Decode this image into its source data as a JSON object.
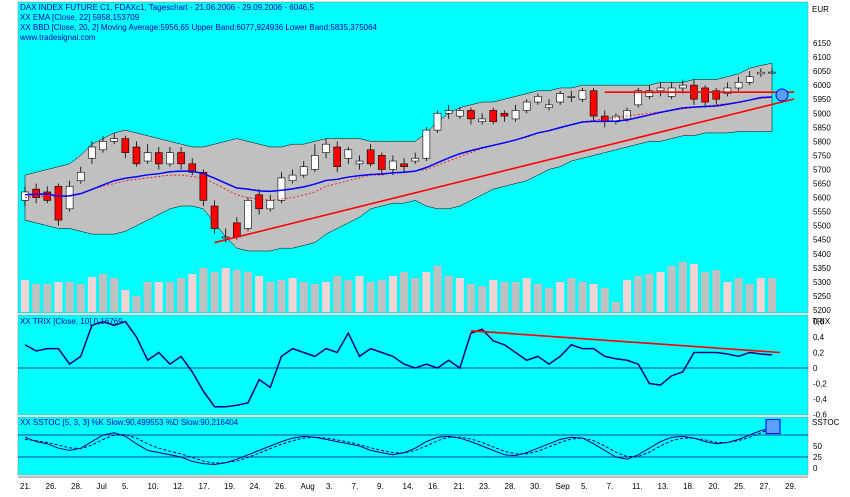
{
  "colors": {
    "background": "#00ffff",
    "band": "#c0c0c0",
    "up": "#ffffff",
    "down": "#ff0000",
    "ema": "#0000ff",
    "trend": "#ff0000",
    "indicator": "#000080",
    "volume": "#c0c0c0"
  },
  "header": {
    "title": "DAX INDEX FUTURE C1, FDAXc1, Tageschart - 21.06.2006 - 29.09.2006 - 6046,5",
    "ema": "XX EMA [Close, 22] 5958,153709",
    "bb": "XX BBD [Close, 20, 2] Moving Average:5956,65 Upper Band:6077,924936 Lower Band:5835,375064",
    "site": "www.tradesignal.com"
  },
  "price_axis": {
    "label": "EUR",
    "ticks": [
      "6150",
      "6100",
      "6050",
      "6000",
      "5950",
      "5900",
      "5850",
      "5800",
      "5750",
      "5700",
      "5650",
      "5600",
      "5550",
      "5500",
      "5450",
      "5400",
      "5350",
      "5300",
      "5250",
      "5200"
    ]
  },
  "trix": {
    "title": "XX TRIX [Close, 10] 0,16769",
    "axis_label": "TRIX",
    "ticks": [
      "0,6",
      "0,4",
      "0,2",
      "0",
      "-0,2",
      "-0,4",
      "-0,6"
    ]
  },
  "sstoc": {
    "title": "XX SSTOC [5, 3, 3] %K Slow:90,499553 %D Slow:90,216404",
    "axis_label": "SSTOC",
    "ticks": [
      "50",
      "25",
      "0"
    ]
  },
  "date_axis": {
    "labels": [
      "21.",
      "26.",
      "28.",
      "Jul",
      "5.",
      "10.",
      "12.",
      "17.",
      "19.",
      "24.",
      "26.",
      "Aug",
      "3.",
      "7.",
      "9.",
      "14.",
      "16.",
      "21.",
      "23.",
      "28.",
      "30.",
      "Sep",
      "5.",
      "7.",
      "11.",
      "13.",
      "18.",
      "20.",
      "25.",
      "27.",
      "29."
    ]
  },
  "chart_data": [
    {
      "type": "candlestick",
      "title": "DAX INDEX FUTURE C1, FDAXc1, Tageschart - 21.06.2006 - 29.09.2006 - 6046,5",
      "ylabel": "EUR",
      "ylim": [
        5200,
        6150
      ],
      "open": [
        5590,
        5630,
        5620,
        5640,
        5560,
        5660,
        5740,
        5770,
        5800,
        5810,
        5780,
        5730,
        5760,
        5720,
        5760,
        5720,
        5690,
        5570,
        5460,
        5510,
        5490,
        5610,
        5560,
        5590,
        5660,
        5680,
        5700,
        5760,
        5780,
        5740,
        5720,
        5770,
        5750,
        5700,
        5720,
        5730,
        5740,
        5840,
        5900,
        5890,
        5910,
        5870,
        5910,
        5900,
        5880,
        5910,
        5940,
        5920,
        5940,
        5960,
        5950,
        5980,
        5890,
        5870,
        5880,
        5930,
        5960,
        5980,
        5960,
        5990,
        6000,
        5990,
        5980,
        5970,
        5990,
        6010,
        6040,
        6046
      ],
      "close": [
        5620,
        5600,
        5590,
        5520,
        5640,
        5690,
        5780,
        5800,
        5810,
        5760,
        5720,
        5760,
        5720,
        5760,
        5720,
        5690,
        5590,
        5490,
        5460,
        5460,
        5590,
        5560,
        5590,
        5670,
        5680,
        5710,
        5750,
        5790,
        5710,
        5770,
        5730,
        5720,
        5700,
        5730,
        5710,
        5740,
        5840,
        5900,
        5910,
        5910,
        5880,
        5880,
        5870,
        5890,
        5910,
        5940,
        5960,
        5930,
        5970,
        5960,
        5980,
        5890,
        5870,
        5890,
        5910,
        5980,
        5980,
        5990,
        5990,
        6000,
        5950,
        5940,
        5950,
        5990,
        6010,
        6030,
        6046,
        6046.5
      ],
      "high": [
        5640,
        5650,
        5640,
        5650,
        5660,
        5710,
        5800,
        5820,
        5830,
        5820,
        5800,
        5790,
        5780,
        5780,
        5780,
        5740,
        5700,
        5590,
        5490,
        5530,
        5600,
        5630,
        5610,
        5690,
        5700,
        5730,
        5790,
        5810,
        5800,
        5780,
        5750,
        5790,
        5760,
        5750,
        5740,
        5760,
        5850,
        5910,
        5930,
        5920,
        5920,
        5900,
        5920,
        5910,
        5930,
        5950,
        5970,
        5950,
        5980,
        5980,
        5990,
        5990,
        5910,
        5900,
        5920,
        5990,
        6000,
        6010,
        6010,
        6020,
        6020,
        6000,
        5990,
        6010,
        6030,
        6050,
        6060,
        6060
      ],
      "low": [
        5570,
        5580,
        5580,
        5500,
        5550,
        5650,
        5720,
        5760,
        5790,
        5740,
        5710,
        5720,
        5700,
        5710,
        5700,
        5680,
        5570,
        5470,
        5440,
        5450,
        5480,
        5540,
        5550,
        5580,
        5650,
        5670,
        5690,
        5740,
        5690,
        5720,
        5700,
        5710,
        5680,
        5680,
        5690,
        5720,
        5730,
        5830,
        5880,
        5880,
        5860,
        5860,
        5860,
        5870,
        5870,
        5900,
        5930,
        5910,
        5930,
        5940,
        5940,
        5870,
        5850,
        5860,
        5870,
        5920,
        5950,
        5960,
        5950,
        5970,
        5930,
        5920,
        5930,
        5960,
        5980,
        6000,
        6030,
        6040
      ],
      "ema22": [
        5610,
        5612,
        5613,
        5605,
        5606,
        5614,
        5629,
        5645,
        5660,
        5669,
        5674,
        5681,
        5685,
        5692,
        5694,
        5694,
        5685,
        5669,
        5651,
        5634,
        5630,
        5624,
        5622,
        5626,
        5631,
        5638,
        5648,
        5661,
        5665,
        5673,
        5678,
        5682,
        5684,
        5688,
        5690,
        5694,
        5707,
        5724,
        5741,
        5756,
        5767,
        5777,
        5786,
        5795,
        5805,
        5817,
        5830,
        5838,
        5849,
        5859,
        5869,
        5871,
        5871,
        5872,
        5876,
        5885,
        5894,
        5903,
        5911,
        5919,
        5922,
        5924,
        5926,
        5932,
        5939,
        5947,
        5956,
        5958
      ],
      "bb_upper": [
        5680,
        5690,
        5700,
        5710,
        5720,
        5750,
        5790,
        5810,
        5830,
        5840,
        5830,
        5820,
        5810,
        5800,
        5790,
        5780,
        5780,
        5790,
        5800,
        5810,
        5800,
        5790,
        5780,
        5780,
        5790,
        5790,
        5800,
        5810,
        5810,
        5810,
        5810,
        5800,
        5800,
        5800,
        5800,
        5800,
        5830,
        5870,
        5900,
        5920,
        5930,
        5940,
        5940,
        5950,
        5960,
        5970,
        5980,
        5980,
        5990,
        5990,
        6000,
        6000,
        6000,
        6000,
        6000,
        6000,
        6000,
        6010,
        6010,
        6010,
        6020,
        6020,
        6020,
        6030,
        6040,
        6060,
        6070,
        6078
      ],
      "bb_middle": [
        5600,
        5605,
        5605,
        5600,
        5605,
        5615,
        5630,
        5640,
        5650,
        5660,
        5665,
        5670,
        5675,
        5680,
        5680,
        5675,
        5670,
        5650,
        5630,
        5610,
        5600,
        5595,
        5590,
        5595,
        5600,
        5610,
        5620,
        5640,
        5650,
        5660,
        5670,
        5680,
        5680,
        5690,
        5690,
        5695,
        5700,
        5715,
        5730,
        5745,
        5760,
        5775,
        5785,
        5795,
        5805,
        5815,
        5830,
        5840,
        5850,
        5860,
        5870,
        5875,
        5880,
        5885,
        5890,
        5895,
        5900,
        5905,
        5910,
        5915,
        5920,
        5925,
        5930,
        5935,
        5940,
        5948,
        5952,
        5957
      ],
      "bb_lower": [
        5520,
        5510,
        5500,
        5490,
        5490,
        5480,
        5470,
        5470,
        5470,
        5480,
        5500,
        5520,
        5540,
        5560,
        5570,
        5570,
        5560,
        5510,
        5460,
        5420,
        5410,
        5410,
        5410,
        5420,
        5420,
        5430,
        5440,
        5470,
        5490,
        5510,
        5530,
        5560,
        5570,
        5580,
        5580,
        5590,
        5570,
        5560,
        5560,
        5570,
        5590,
        5610,
        5630,
        5640,
        5650,
        5660,
        5680,
        5700,
        5710,
        5730,
        5740,
        5750,
        5760,
        5770,
        5780,
        5790,
        5800,
        5800,
        5810,
        5820,
        5820,
        5830,
        5830,
        5830,
        5835,
        5835,
        5835,
        5835
      ],
      "trend_support": [
        [
          17,
          5440
        ],
        [
          67,
          5965
        ]
      ],
      "trend_resistance": [
        [
          52,
          5975
        ],
        [
          67,
          5975
        ]
      ]
    },
    {
      "type": "bar",
      "title": "Volume",
      "values": [
        32,
        28,
        28,
        30,
        30,
        28,
        35,
        38,
        34,
        22,
        16,
        30,
        30,
        30,
        34,
        38,
        44,
        40,
        44,
        42,
        40,
        36,
        30,
        32,
        34,
        30,
        28,
        30,
        36,
        32,
        36,
        30,
        32,
        36,
        40,
        34,
        40,
        46,
        36,
        34,
        28,
        26,
        32,
        30,
        30,
        34,
        28,
        24,
        30,
        34,
        30,
        28,
        24,
        10,
        32,
        36,
        38,
        40,
        46,
        50,
        48,
        40,
        42,
        30,
        34,
        28,
        34,
        34
      ]
    },
    {
      "type": "line",
      "title": "XX TRIX [Close, 10] 0,16769",
      "ylim": [
        -0.7,
        0.7
      ],
      "values": [
        0.3,
        0.22,
        0.25,
        0.25,
        0.05,
        0.15,
        0.55,
        0.6,
        0.55,
        0.6,
        0.4,
        0.1,
        0.2,
        0.05,
        0.15,
        -0.05,
        -0.3,
        -0.5,
        -0.5,
        -0.48,
        -0.45,
        -0.15,
        -0.25,
        0.15,
        0.25,
        0.2,
        0.15,
        0.25,
        0.2,
        0.45,
        0.15,
        0.25,
        0.2,
        0.15,
        0.05,
        0.0,
        0.05,
        0.0,
        0.1,
        0.0,
        0.45,
        0.5,
        0.35,
        0.3,
        0.2,
        0.1,
        0.15,
        0.05,
        0.15,
        0.3,
        0.25,
        0.25,
        0.15,
        0.12,
        0.1,
        0.05,
        -0.2,
        -0.22,
        -0.1,
        -0.05,
        0.2,
        0.2,
        0.2,
        0.18,
        0.15,
        0.2,
        0.18,
        0.17
      ]
    },
    {
      "type": "line",
      "title": "XX SSTOC [5, 3, 3] %K Slow:90,499553 %D Slow:90,216404",
      "ylim": [
        -10,
        110
      ],
      "series": [
        {
          "name": "%K Slow",
          "values": [
            70,
            60,
            55,
            45,
            40,
            45,
            60,
            75,
            80,
            72,
            55,
            40,
            35,
            30,
            25,
            15,
            10,
            8,
            12,
            20,
            30,
            40,
            50,
            60,
            68,
            72,
            70,
            65,
            60,
            55,
            50,
            40,
            35,
            30,
            35,
            45,
            60,
            70,
            72,
            68,
            60,
            50,
            40,
            30,
            28,
            35,
            45,
            55,
            65,
            70,
            68,
            55,
            40,
            25,
            20,
            30,
            45,
            60,
            70,
            72,
            68,
            60,
            55,
            58,
            65,
            75,
            85,
            90.5
          ]
        },
        {
          "name": "%D Slow",
          "values": [
            65,
            62,
            58,
            52,
            46,
            44,
            52,
            65,
            75,
            76,
            68,
            55,
            45,
            38,
            32,
            24,
            16,
            11,
            12,
            16,
            24,
            34,
            44,
            54,
            62,
            68,
            70,
            68,
            64,
            59,
            53,
            46,
            40,
            35,
            34,
            40,
            50,
            62,
            70,
            70,
            66,
            58,
            48,
            38,
            32,
            32,
            38,
            48,
            58,
            66,
            68,
            62,
            50,
            36,
            26,
            26,
            36,
            50,
            62,
            68,
            68,
            64,
            58,
            58,
            62,
            70,
            80,
            90.2
          ]
        }
      ]
    }
  ]
}
